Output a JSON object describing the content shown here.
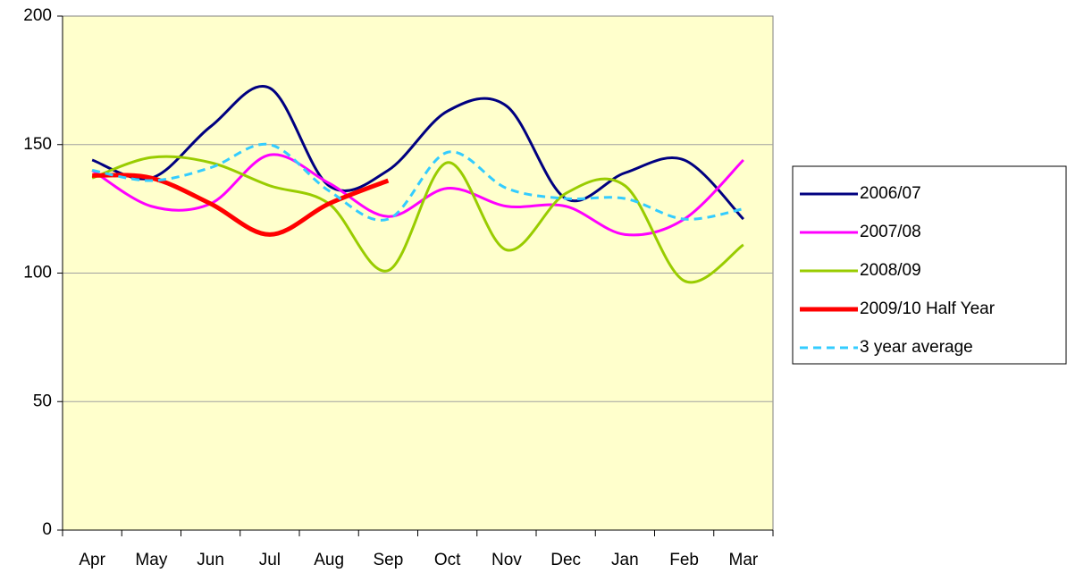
{
  "chart_data": {
    "type": "line",
    "categories": [
      "Apr",
      "May",
      "Jun",
      "Jul",
      "Aug",
      "Sep",
      "Oct",
      "Nov",
      "Dec",
      "Jan",
      "Feb",
      "Mar"
    ],
    "series": [
      {
        "name": "2006/07",
        "color": "#000080",
        "values": [
          144,
          137,
          157,
          172,
          134,
          140,
          163,
          165,
          129,
          139,
          144,
          121
        ]
      },
      {
        "name": "2007/08",
        "color": "#ff00ff",
        "values": [
          140,
          126,
          127,
          146,
          135,
          122,
          133,
          126,
          126,
          115,
          121,
          144
        ]
      },
      {
        "name": "2008/09",
        "color": "#99cc00",
        "values": [
          137,
          145,
          143,
          134,
          127,
          101,
          143,
          109,
          131,
          134,
          97,
          111
        ]
      },
      {
        "name": "2009/10 Half Year",
        "color": "#ff0000",
        "values": [
          138,
          137,
          127,
          115,
          127,
          136,
          null,
          null,
          null,
          null,
          null,
          null
        ]
      },
      {
        "name": "3 year average",
        "color": "#33ccff",
        "dashed": true,
        "values": [
          140,
          136,
          141,
          150,
          132,
          121,
          147,
          133,
          129,
          129,
          121,
          125
        ]
      }
    ],
    "ylim": [
      0,
      200
    ],
    "yticks": [
      0,
      50,
      100,
      150,
      200
    ],
    "grid": true,
    "legend": "right",
    "plot_background": "#ffffcc"
  }
}
